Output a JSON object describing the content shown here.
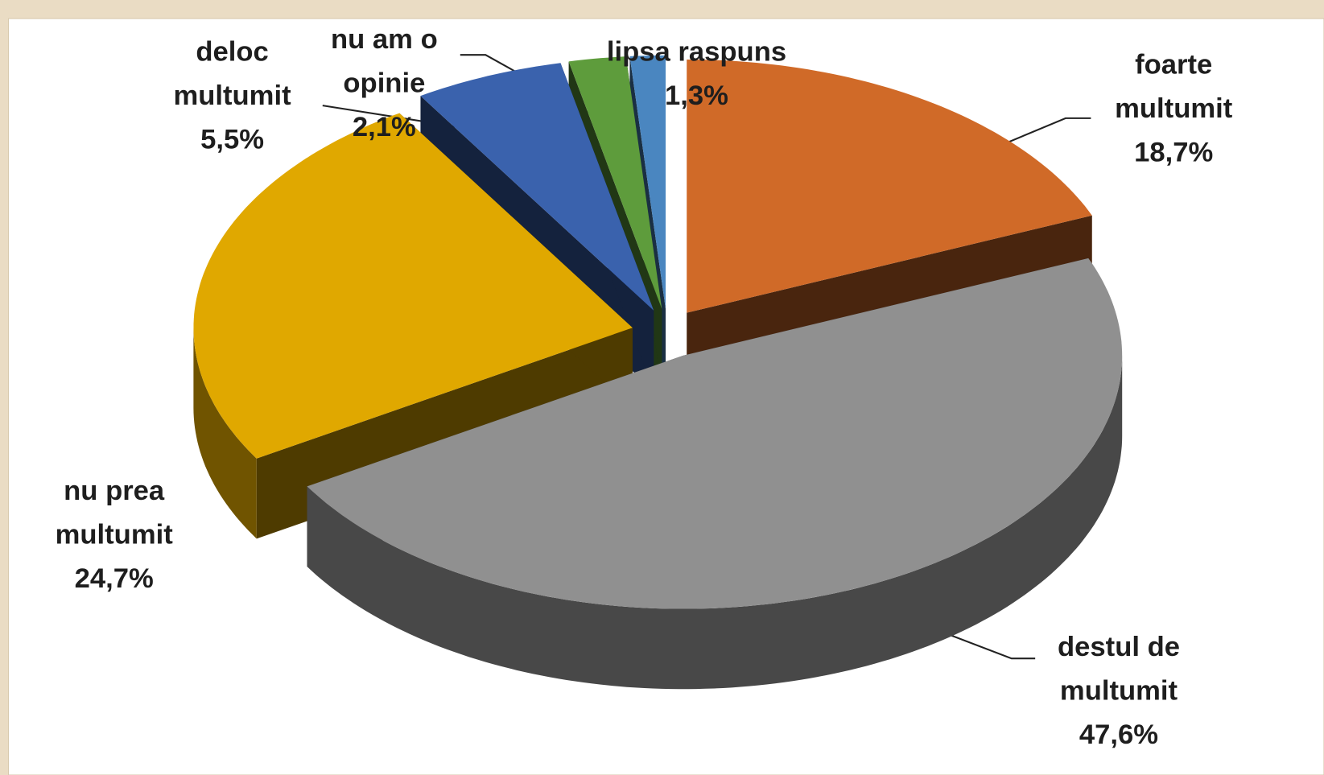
{
  "chart_data": {
    "type": "pie",
    "categories": [
      "foarte multumit",
      "destul de multumit",
      "nu prea multumit",
      "deloc multumit",
      "nu am o opinie",
      "lipsa raspuns"
    ],
    "values": [
      18.7,
      47.6,
      24.7,
      5.5,
      2.1,
      1.3
    ],
    "value_labels": [
      "18,7%",
      "47,6%",
      "24,7%",
      "5,5%",
      "2,1%",
      "1,3%"
    ],
    "colors": [
      "#d06a28",
      "#909090",
      "#e0a800",
      "#3a62ad",
      "#5e9c3c",
      "#4a86c0"
    ]
  }
}
